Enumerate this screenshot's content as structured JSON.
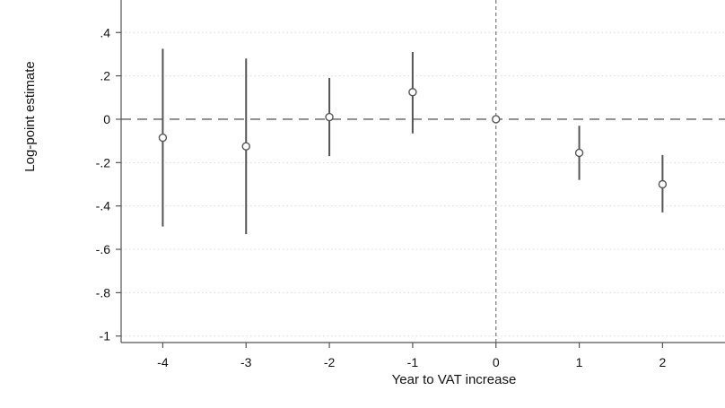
{
  "chart_data": {
    "type": "scatter",
    "subtype": "coefficient plot with confidence intervals",
    "title": "",
    "xlabel": "Year to VAT increase",
    "ylabel": "Log-point estimate",
    "x": [
      -4,
      -3,
      -2,
      -1,
      0,
      1,
      2
    ],
    "series": [
      {
        "estimate": [
          -0.085,
          -0.125,
          0.01,
          0.125,
          0.0,
          -0.155,
          -0.3
        ],
        "ci_low": [
          -0.495,
          -0.53,
          -0.17,
          -0.065,
          0.0,
          -0.28,
          -0.43
        ],
        "ci_high": [
          0.325,
          0.28,
          0.19,
          0.31,
          0.0,
          -0.03,
          -0.165
        ]
      }
    ],
    "xticks": [
      -4,
      -3,
      -2,
      -1,
      0,
      1,
      2
    ],
    "xtick_labels": [
      "-4",
      "-3",
      "-2",
      "-1",
      "0",
      "1",
      "2"
    ],
    "yticks": [
      -1,
      -0.8,
      -0.6,
      -0.4,
      -0.2,
      0,
      0.2,
      0.4
    ],
    "ytick_labels": [
      "-1",
      "-.8",
      "-.6",
      "-.4",
      "-.2",
      "0",
      ".2",
      ".4"
    ],
    "xlim": [
      -4.5,
      2.75
    ],
    "ylim": [
      -1.03,
      0.55
    ],
    "reference_lines": {
      "horizontal_y": 0,
      "vertical_x": 0
    },
    "grid": "horizontal dotted",
    "legend": "none",
    "colors": {
      "marker": "#555555",
      "ci_line": "#555555",
      "reference_line": "#777777",
      "grid": "#d9d9d9",
      "axis": "#555555"
    }
  }
}
